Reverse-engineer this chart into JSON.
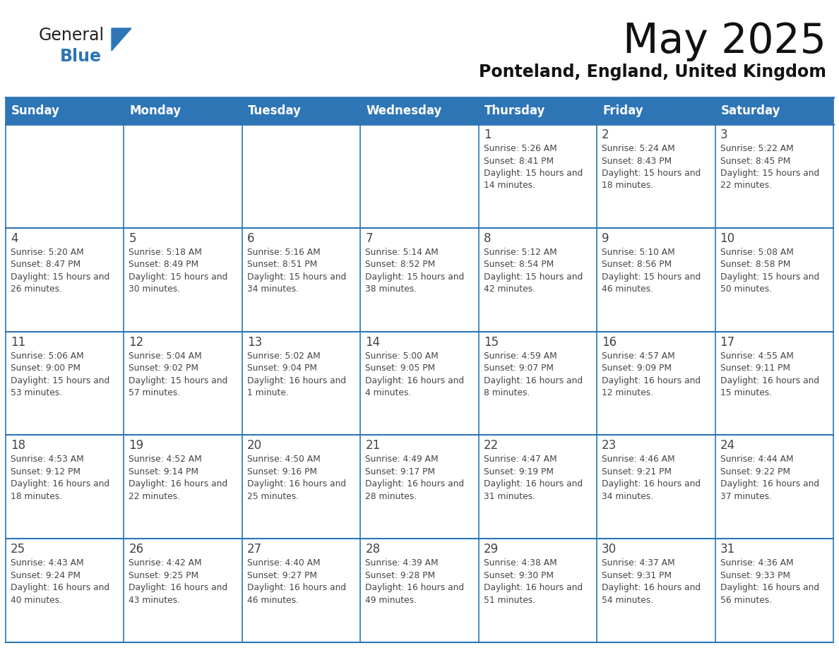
{
  "title": "May 2025",
  "subtitle": "Ponteland, England, United Kingdom",
  "header_bg": "#2E75B6",
  "header_text_color": "#FFFFFF",
  "border_color": "#2E75B6",
  "cell_border_color": "#AAAAAA",
  "day_names": [
    "Sunday",
    "Monday",
    "Tuesday",
    "Wednesday",
    "Thursday",
    "Friday",
    "Saturday"
  ],
  "days": [
    {
      "day": 1,
      "col": 4,
      "row": 0,
      "sunrise": "5:26 AM",
      "sunset": "8:41 PM",
      "daylight": "15 hours and 14 minutes."
    },
    {
      "day": 2,
      "col": 5,
      "row": 0,
      "sunrise": "5:24 AM",
      "sunset": "8:43 PM",
      "daylight": "15 hours and 18 minutes."
    },
    {
      "day": 3,
      "col": 6,
      "row": 0,
      "sunrise": "5:22 AM",
      "sunset": "8:45 PM",
      "daylight": "15 hours and 22 minutes."
    },
    {
      "day": 4,
      "col": 0,
      "row": 1,
      "sunrise": "5:20 AM",
      "sunset": "8:47 PM",
      "daylight": "15 hours and 26 minutes."
    },
    {
      "day": 5,
      "col": 1,
      "row": 1,
      "sunrise": "5:18 AM",
      "sunset": "8:49 PM",
      "daylight": "15 hours and 30 minutes."
    },
    {
      "day": 6,
      "col": 2,
      "row": 1,
      "sunrise": "5:16 AM",
      "sunset": "8:51 PM",
      "daylight": "15 hours and 34 minutes."
    },
    {
      "day": 7,
      "col": 3,
      "row": 1,
      "sunrise": "5:14 AM",
      "sunset": "8:52 PM",
      "daylight": "15 hours and 38 minutes."
    },
    {
      "day": 8,
      "col": 4,
      "row": 1,
      "sunrise": "5:12 AM",
      "sunset": "8:54 PM",
      "daylight": "15 hours and 42 minutes."
    },
    {
      "day": 9,
      "col": 5,
      "row": 1,
      "sunrise": "5:10 AM",
      "sunset": "8:56 PM",
      "daylight": "15 hours and 46 minutes."
    },
    {
      "day": 10,
      "col": 6,
      "row": 1,
      "sunrise": "5:08 AM",
      "sunset": "8:58 PM",
      "daylight": "15 hours and 50 minutes."
    },
    {
      "day": 11,
      "col": 0,
      "row": 2,
      "sunrise": "5:06 AM",
      "sunset": "9:00 PM",
      "daylight": "15 hours and 53 minutes."
    },
    {
      "day": 12,
      "col": 1,
      "row": 2,
      "sunrise": "5:04 AM",
      "sunset": "9:02 PM",
      "daylight": "15 hours and 57 minutes."
    },
    {
      "day": 13,
      "col": 2,
      "row": 2,
      "sunrise": "5:02 AM",
      "sunset": "9:04 PM",
      "daylight": "16 hours and 1 minute."
    },
    {
      "day": 14,
      "col": 3,
      "row": 2,
      "sunrise": "5:00 AM",
      "sunset": "9:05 PM",
      "daylight": "16 hours and 4 minutes."
    },
    {
      "day": 15,
      "col": 4,
      "row": 2,
      "sunrise": "4:59 AM",
      "sunset": "9:07 PM",
      "daylight": "16 hours and 8 minutes."
    },
    {
      "day": 16,
      "col": 5,
      "row": 2,
      "sunrise": "4:57 AM",
      "sunset": "9:09 PM",
      "daylight": "16 hours and 12 minutes."
    },
    {
      "day": 17,
      "col": 6,
      "row": 2,
      "sunrise": "4:55 AM",
      "sunset": "9:11 PM",
      "daylight": "16 hours and 15 minutes."
    },
    {
      "day": 18,
      "col": 0,
      "row": 3,
      "sunrise": "4:53 AM",
      "sunset": "9:12 PM",
      "daylight": "16 hours and 18 minutes."
    },
    {
      "day": 19,
      "col": 1,
      "row": 3,
      "sunrise": "4:52 AM",
      "sunset": "9:14 PM",
      "daylight": "16 hours and 22 minutes."
    },
    {
      "day": 20,
      "col": 2,
      "row": 3,
      "sunrise": "4:50 AM",
      "sunset": "9:16 PM",
      "daylight": "16 hours and 25 minutes."
    },
    {
      "day": 21,
      "col": 3,
      "row": 3,
      "sunrise": "4:49 AM",
      "sunset": "9:17 PM",
      "daylight": "16 hours and 28 minutes."
    },
    {
      "day": 22,
      "col": 4,
      "row": 3,
      "sunrise": "4:47 AM",
      "sunset": "9:19 PM",
      "daylight": "16 hours and 31 minutes."
    },
    {
      "day": 23,
      "col": 5,
      "row": 3,
      "sunrise": "4:46 AM",
      "sunset": "9:21 PM",
      "daylight": "16 hours and 34 minutes."
    },
    {
      "day": 24,
      "col": 6,
      "row": 3,
      "sunrise": "4:44 AM",
      "sunset": "9:22 PM",
      "daylight": "16 hours and 37 minutes."
    },
    {
      "day": 25,
      "col": 0,
      "row": 4,
      "sunrise": "4:43 AM",
      "sunset": "9:24 PM",
      "daylight": "16 hours and 40 minutes."
    },
    {
      "day": 26,
      "col": 1,
      "row": 4,
      "sunrise": "4:42 AM",
      "sunset": "9:25 PM",
      "daylight": "16 hours and 43 minutes."
    },
    {
      "day": 27,
      "col": 2,
      "row": 4,
      "sunrise": "4:40 AM",
      "sunset": "9:27 PM",
      "daylight": "16 hours and 46 minutes."
    },
    {
      "day": 28,
      "col": 3,
      "row": 4,
      "sunrise": "4:39 AM",
      "sunset": "9:28 PM",
      "daylight": "16 hours and 49 minutes."
    },
    {
      "day": 29,
      "col": 4,
      "row": 4,
      "sunrise": "4:38 AM",
      "sunset": "9:30 PM",
      "daylight": "16 hours and 51 minutes."
    },
    {
      "day": 30,
      "col": 5,
      "row": 4,
      "sunrise": "4:37 AM",
      "sunset": "9:31 PM",
      "daylight": "16 hours and 54 minutes."
    },
    {
      "day": 31,
      "col": 6,
      "row": 4,
      "sunrise": "4:36 AM",
      "sunset": "9:33 PM",
      "daylight": "16 hours and 56 minutes."
    }
  ],
  "num_rows": 5,
  "logo_general_color": "#222222",
  "logo_blue_color": "#2E75B6",
  "title_color": "#111111",
  "subtitle_color": "#111111",
  "text_color": "#444444"
}
